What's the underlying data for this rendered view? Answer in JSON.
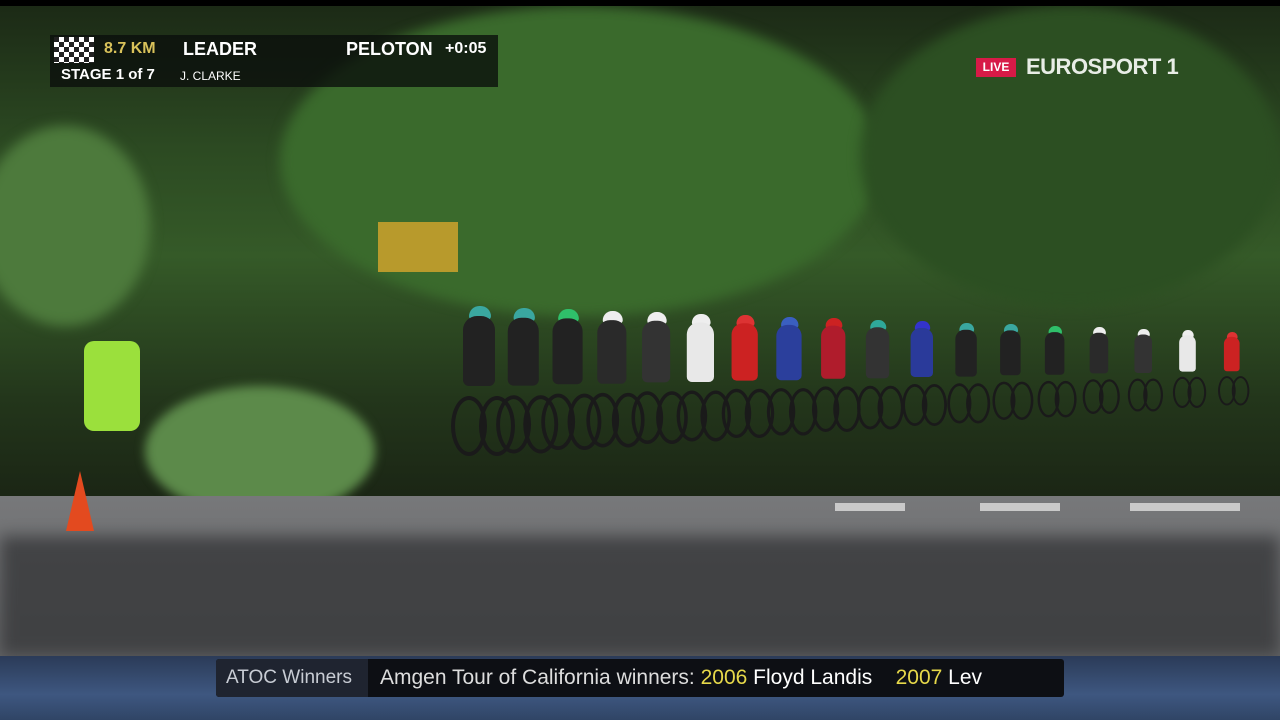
{
  "scoreboard": {
    "distance": "8.7 KM",
    "leader_label": "LEADER",
    "stage": "STAGE 1 of 7",
    "leader_name": "J. CLARKE",
    "group_label": "PELOTON",
    "gap": "+0:05"
  },
  "channel": {
    "live_badge": "LIVE",
    "logo": "EUROSPORT 1",
    "live_color": "#d71a47"
  },
  "ticker": {
    "label": "ATOC Winners",
    "intro": "Amgen Tour of California winners:",
    "entries": [
      {
        "year": "2006",
        "name": "Floyd Landis"
      },
      {
        "year": "2007",
        "name": "Lev"
      }
    ]
  }
}
